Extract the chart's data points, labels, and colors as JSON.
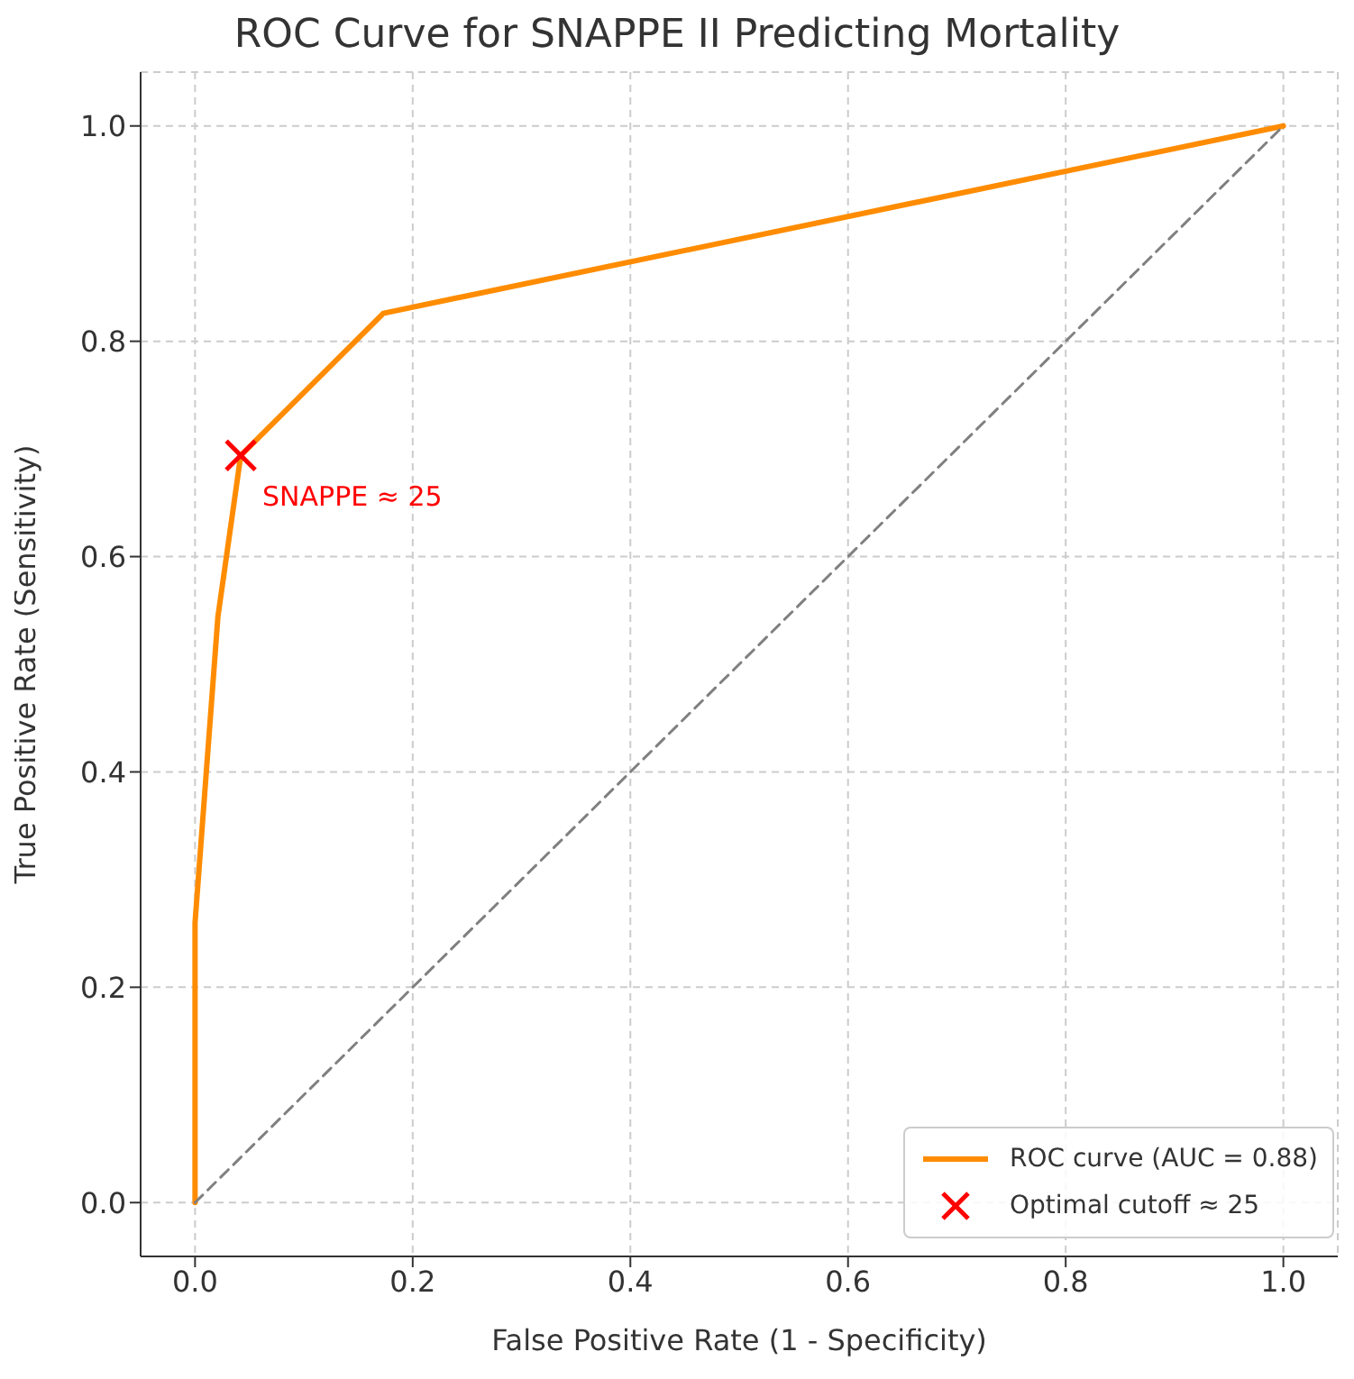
{
  "chart_data": {
    "type": "line",
    "title": "ROC Curve for SNAPPE II Predicting Mortality",
    "xlabel": "False Positive Rate (1 - Specificity)",
    "ylabel": "True Positive Rate (Sensitivity)",
    "xlim": [
      -0.05,
      1.05
    ],
    "ylim": [
      -0.05,
      1.05
    ],
    "xticks": [
      {
        "value": 0,
        "label": "0.0"
      },
      0.2,
      0.4,
      0.6,
      0.8,
      {
        "value": 1,
        "label": "1.0"
      }
    ],
    "yticks": [
      {
        "value": 0,
        "label": "0.0"
      },
      0.2,
      0.4,
      0.6,
      0.8,
      {
        "value": 1,
        "label": "1.0"
      }
    ],
    "series": [
      {
        "name": "ROC curve (AUC = 0.88)",
        "color": "#ff8c00",
        "x": [
          0,
          0,
          0.021,
          0.042,
          0.173,
          1
        ],
        "values": [
          0,
          0.26,
          0.544,
          0.694,
          0.826,
          1
        ],
        "marker": "none",
        "line_style": "solid"
      },
      {
        "color": "#808080",
        "x": [
          0,
          1
        ],
        "values": [
          0,
          1
        ],
        "marker": "none",
        "line_style": "dashed"
      },
      {
        "name": "Optimal cutoff ≈ 25",
        "type": "scatter",
        "color": "#ff0000",
        "x": [
          0.042
        ],
        "values": [
          0.694
        ],
        "marker": "cross"
      }
    ],
    "annotations": [
      {
        "text": "SNAPPE ≈ 25",
        "x": 0.042,
        "y": 0.694
      }
    ],
    "grid": true,
    "legend": "bottom right"
  }
}
